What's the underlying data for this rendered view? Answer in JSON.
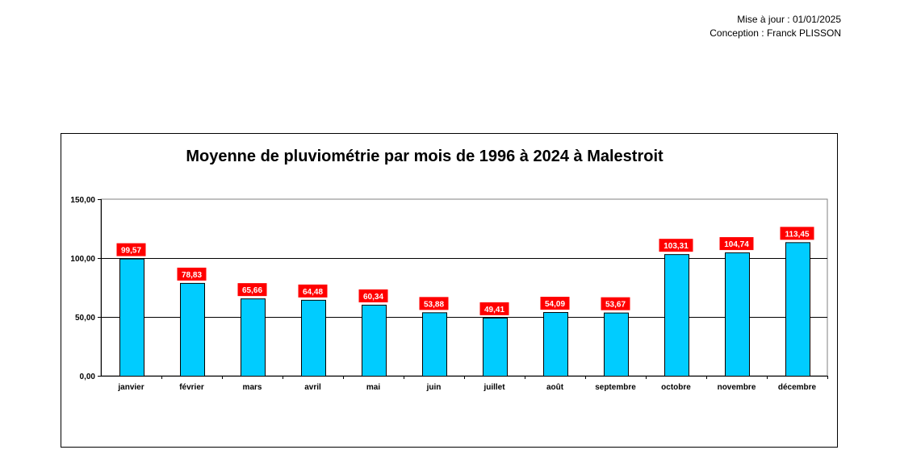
{
  "header": {
    "update": "Mise à jour : 01/01/2025",
    "author": "Conception : Franck PLISSON"
  },
  "colors": {
    "bar": "#00ccff",
    "label_bg": "#ff0000",
    "label_text": "#ffffff"
  },
  "chart_data": {
    "type": "bar",
    "title": "Moyenne de pluviométrie par mois de 1996 à 2024 à Malestroit",
    "xlabel": "",
    "ylabel": "",
    "ylim": [
      0,
      150
    ],
    "yticks": [
      0,
      50,
      100,
      150
    ],
    "ytick_labels": [
      "0,00",
      "50,00",
      "100,00",
      "150,00"
    ],
    "grid": true,
    "categories": [
      "janvier",
      "février",
      "mars",
      "avril",
      "mai",
      "juin",
      "juillet",
      "août",
      "septembre",
      "octobre",
      "novembre",
      "décembre"
    ],
    "values": [
      99.57,
      78.83,
      65.66,
      64.48,
      60.34,
      53.88,
      49.41,
      54.09,
      53.67,
      103.31,
      104.74,
      113.45
    ],
    "value_labels": [
      "99,57",
      "78,83",
      "65,66",
      "64,48",
      "60,34",
      "53,88",
      "49,41",
      "54,09",
      "53,67",
      "103,31",
      "104,74",
      "113,45"
    ]
  }
}
